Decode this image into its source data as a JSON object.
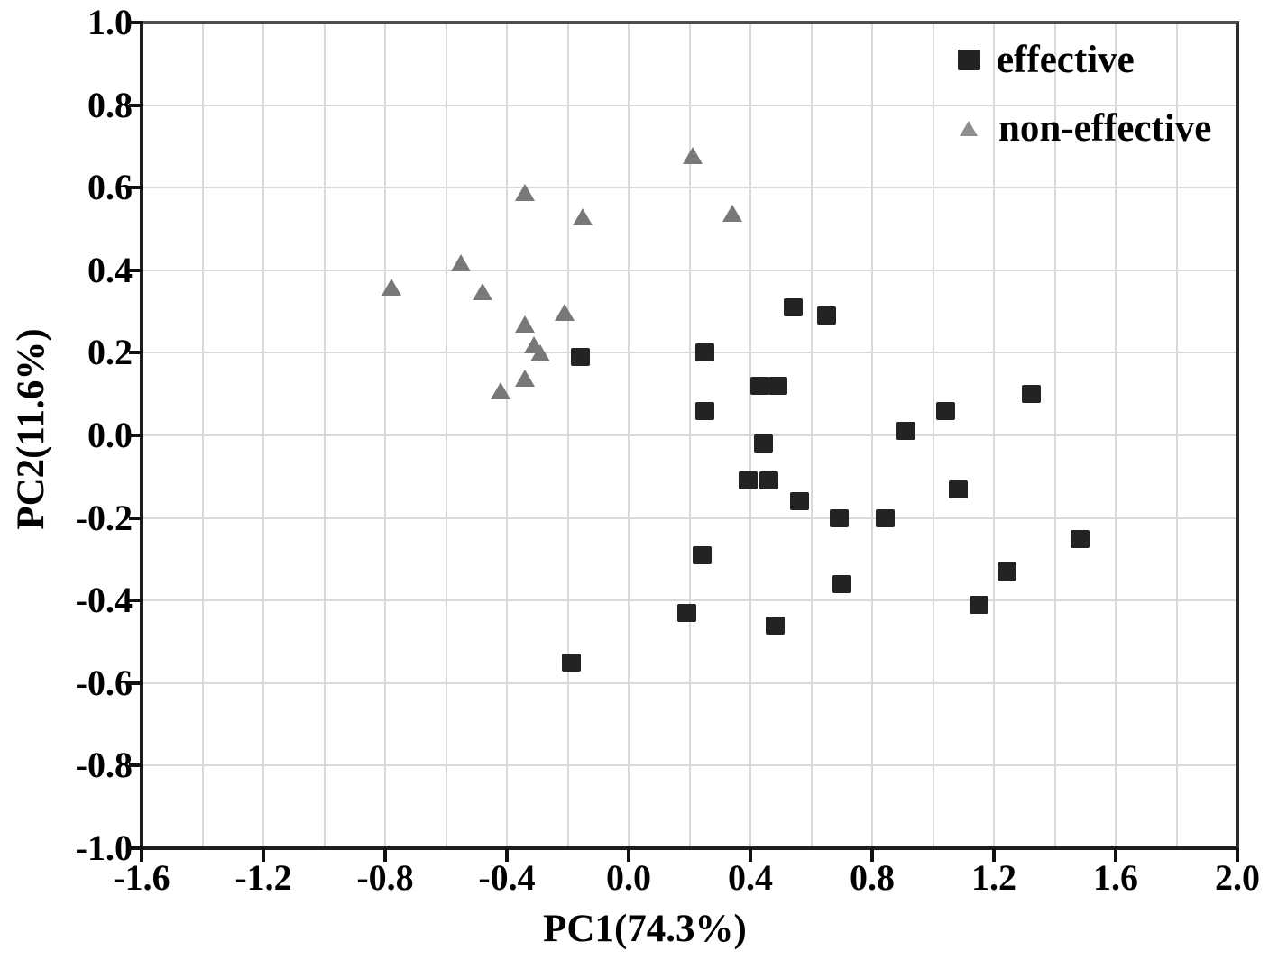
{
  "chart_data": {
    "type": "scatter",
    "title": "",
    "xlabel": "PC1(74.3%)",
    "ylabel": "PC2(11.6%)",
    "xlim": [
      -1.6,
      2.0
    ],
    "ylim": [
      -1.0,
      1.0
    ],
    "grid": true,
    "grid_step": 0.2,
    "x_ticks": [
      -1.6,
      -1.2,
      -0.8,
      -0.4,
      0.0,
      0.4,
      0.8,
      1.2,
      1.6,
      2.0
    ],
    "x_tick_labels": [
      "-1.6",
      "-1.2",
      "-0.8",
      "-0.4",
      "0.0",
      "0.4",
      "0.8",
      "1.2",
      "1.6",
      "2.0"
    ],
    "y_ticks": [
      1.0,
      0.8,
      0.6,
      0.4,
      0.2,
      0.0,
      -0.2,
      -0.4,
      -0.6,
      -0.8,
      -1.0
    ],
    "y_tick_labels": [
      "1.0",
      "0.8",
      "0.6",
      "0.4",
      "0.2",
      "0.0",
      "-0.2",
      "-0.4",
      "-0.6",
      "-0.8",
      "-1.0"
    ],
    "legend_position": "top-right-inside",
    "series": [
      {
        "name": "effective",
        "marker": "square",
        "color": "#232323",
        "points": [
          [
            -0.16,
            0.19
          ],
          [
            0.25,
            0.2
          ],
          [
            0.25,
            0.06
          ],
          [
            0.43,
            0.12
          ],
          [
            0.49,
            0.12
          ],
          [
            0.44,
            -0.02
          ],
          [
            0.39,
            -0.11
          ],
          [
            0.46,
            -0.11
          ],
          [
            0.54,
            0.31
          ],
          [
            0.65,
            0.29
          ],
          [
            0.56,
            -0.16
          ],
          [
            0.69,
            -0.2
          ],
          [
            0.84,
            -0.2
          ],
          [
            0.91,
            0.01
          ],
          [
            1.04,
            0.06
          ],
          [
            1.32,
            0.1
          ],
          [
            1.08,
            -0.13
          ],
          [
            1.15,
            -0.41
          ],
          [
            1.24,
            -0.33
          ],
          [
            1.48,
            -0.25
          ],
          [
            0.24,
            -0.29
          ],
          [
            0.19,
            -0.43
          ],
          [
            0.48,
            -0.46
          ],
          [
            0.7,
            -0.36
          ],
          [
            -0.19,
            -0.55
          ]
        ]
      },
      {
        "name": "non-effective",
        "marker": "triangle",
        "color": "#787878",
        "points": [
          [
            -0.78,
            0.36
          ],
          [
            -0.55,
            0.42
          ],
          [
            -0.48,
            0.35
          ],
          [
            -0.34,
            0.59
          ],
          [
            -0.15,
            0.53
          ],
          [
            -0.21,
            0.3
          ],
          [
            -0.34,
            0.27
          ],
          [
            -0.31,
            0.22
          ],
          [
            -0.29,
            0.2
          ],
          [
            -0.34,
            0.14
          ],
          [
            -0.42,
            0.11
          ],
          [
            0.21,
            0.68
          ],
          [
            0.34,
            0.54
          ]
        ]
      }
    ]
  },
  "colors": {
    "grid": "#d9d9d9",
    "tick": "#111111",
    "text": "#000000",
    "background": "#ffffff",
    "legend_triangle": "#8f8f8f"
  }
}
